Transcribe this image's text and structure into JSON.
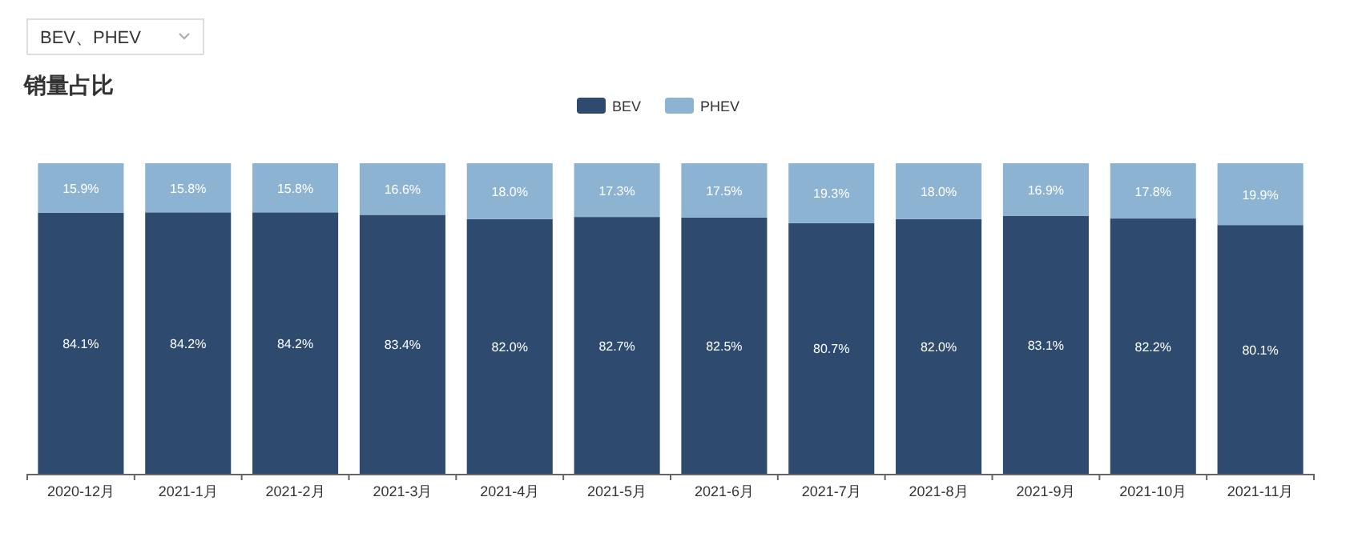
{
  "chart_data": {
    "type": "bar",
    "title": "销量占比",
    "annotations": [
      "BEV、PHEV"
    ],
    "stacked": true,
    "legend": "top",
    "categories": [
      "2020-12月",
      "2021-1月",
      "2021-2月",
      "2021-3月",
      "2021-4月",
      "2021-5月",
      "2021-6月",
      "2021-7月",
      "2021-8月",
      "2021-9月",
      "2021-10月",
      "2021-11月"
    ],
    "series": [
      {
        "name": "BEV",
        "color": "#2e4a6e",
        "values": [
          84.1,
          84.2,
          84.2,
          83.4,
          82.0,
          82.7,
          82.5,
          80.7,
          82.0,
          83.1,
          82.2,
          80.1
        ],
        "value_labels": [
          "84.1%",
          "84.2%",
          "84.2%",
          "83.4%",
          "82.0%",
          "82.7%",
          "82.5%",
          "80.7%",
          "82.0%",
          "83.1%",
          "82.2%",
          "80.1%"
        ]
      },
      {
        "name": "PHEV",
        "color": "#8db3d3",
        "values": [
          15.9,
          15.8,
          15.8,
          16.6,
          18.0,
          17.3,
          17.5,
          19.3,
          18.0,
          16.9,
          17.8,
          19.9
        ],
        "value_labels": [
          "15.9%",
          "15.8%",
          "15.8%",
          "16.6%",
          "18.0%",
          "17.3%",
          "17.5%",
          "19.3%",
          "18.0%",
          "16.9%",
          "17.8%",
          "19.9%"
        ]
      }
    ]
  }
}
